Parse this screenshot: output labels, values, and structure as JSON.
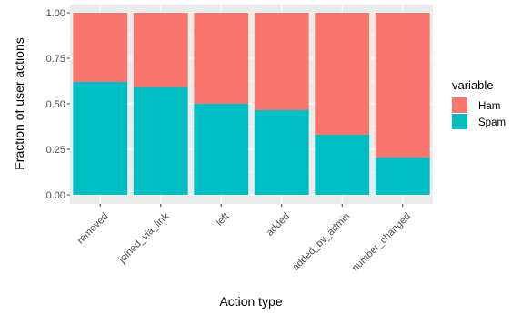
{
  "chart_data": {
    "type": "bar",
    "stacked": true,
    "categories": [
      "removed",
      "joined_via_link",
      "left",
      "added",
      "added_by_admin",
      "number_changed"
    ],
    "series": [
      {
        "name": "Spam",
        "color": "#00BFC4",
        "values": [
          0.62,
          0.59,
          0.5,
          0.465,
          0.33,
          0.205
        ]
      },
      {
        "name": "Ham",
        "color": "#F8766D",
        "values": [
          0.38,
          0.41,
          0.5,
          0.535,
          0.67,
          0.795
        ]
      }
    ],
    "xlabel": "Action type",
    "ylabel": "Fraction of user actions",
    "ylim": [
      0,
      1.0
    ],
    "yticks": [
      0.0,
      0.25,
      0.5,
      0.75,
      1.0
    ],
    "ytick_labels": [
      "0.00",
      "0.25",
      "0.50",
      "0.75",
      "1.00"
    ],
    "grid": true,
    "legend": {
      "title": "variable",
      "placement": "right",
      "entries": [
        {
          "label": "Ham",
          "color": "#F8766D"
        },
        {
          "label": "Spam",
          "color": "#00BFC4"
        }
      ]
    },
    "panel_background": "#EBEBEB",
    "gridline_color": "#FFFFFF"
  }
}
